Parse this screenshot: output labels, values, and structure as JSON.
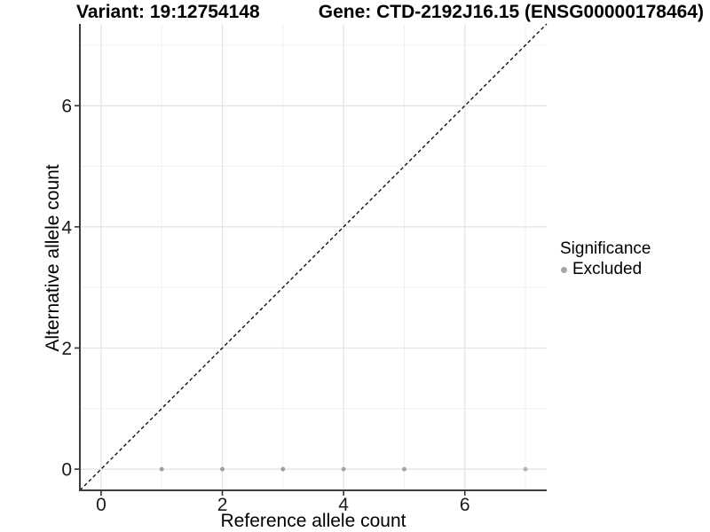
{
  "chart_data": {
    "type": "scatter",
    "title_left": "Variant: 19:12754148",
    "title_right": "Gene: CTD-2192J16.15 (ENSG00000178464)",
    "xlabel": "Reference allele count",
    "ylabel": "Alternative allele count",
    "xlim": [
      -0.35,
      7.35
    ],
    "ylim": [
      -0.35,
      7.35
    ],
    "x_ticks": [
      0,
      2,
      4,
      6
    ],
    "y_ticks": [
      0,
      2,
      4,
      6
    ],
    "grid": "on",
    "grid_major": [
      0,
      2,
      4,
      6
    ],
    "grid_minor": [
      1,
      3,
      5,
      7
    ],
    "points": [
      {
        "x": 1,
        "y": 0,
        "significance": "Excluded",
        "color": "#9e9e9e"
      },
      {
        "x": 2,
        "y": 0,
        "significance": "Excluded",
        "color": "#9e9e9e"
      },
      {
        "x": 3,
        "y": 0,
        "significance": "Excluded",
        "color": "#9e9e9e"
      },
      {
        "x": 4,
        "y": 0,
        "significance": "Excluded",
        "color": "#a3a3a3"
      },
      {
        "x": 5,
        "y": 0,
        "significance": "Excluded",
        "color": "#a3a3a3"
      },
      {
        "x": 7,
        "y": 0,
        "significance": "Excluded",
        "color": "#b5b5b5"
      }
    ],
    "identity_line": {
      "type": "abline",
      "intercept": 0,
      "slope": 1,
      "style": "dashed",
      "color": "#000000"
    },
    "legend": {
      "title": "Significance",
      "position": "right",
      "items": [
        {
          "label": "Excluded",
          "color": "#a6a6a6"
        }
      ]
    },
    "colors": {
      "background": "#ffffff",
      "point": "#a1a1a1",
      "grid_major": "#e2e2e2",
      "grid_minor": "#f0f0f0",
      "axis_line": "#3d3d3d",
      "tick_mark": "#333333",
      "tick_label": "#1a1a1a"
    }
  }
}
